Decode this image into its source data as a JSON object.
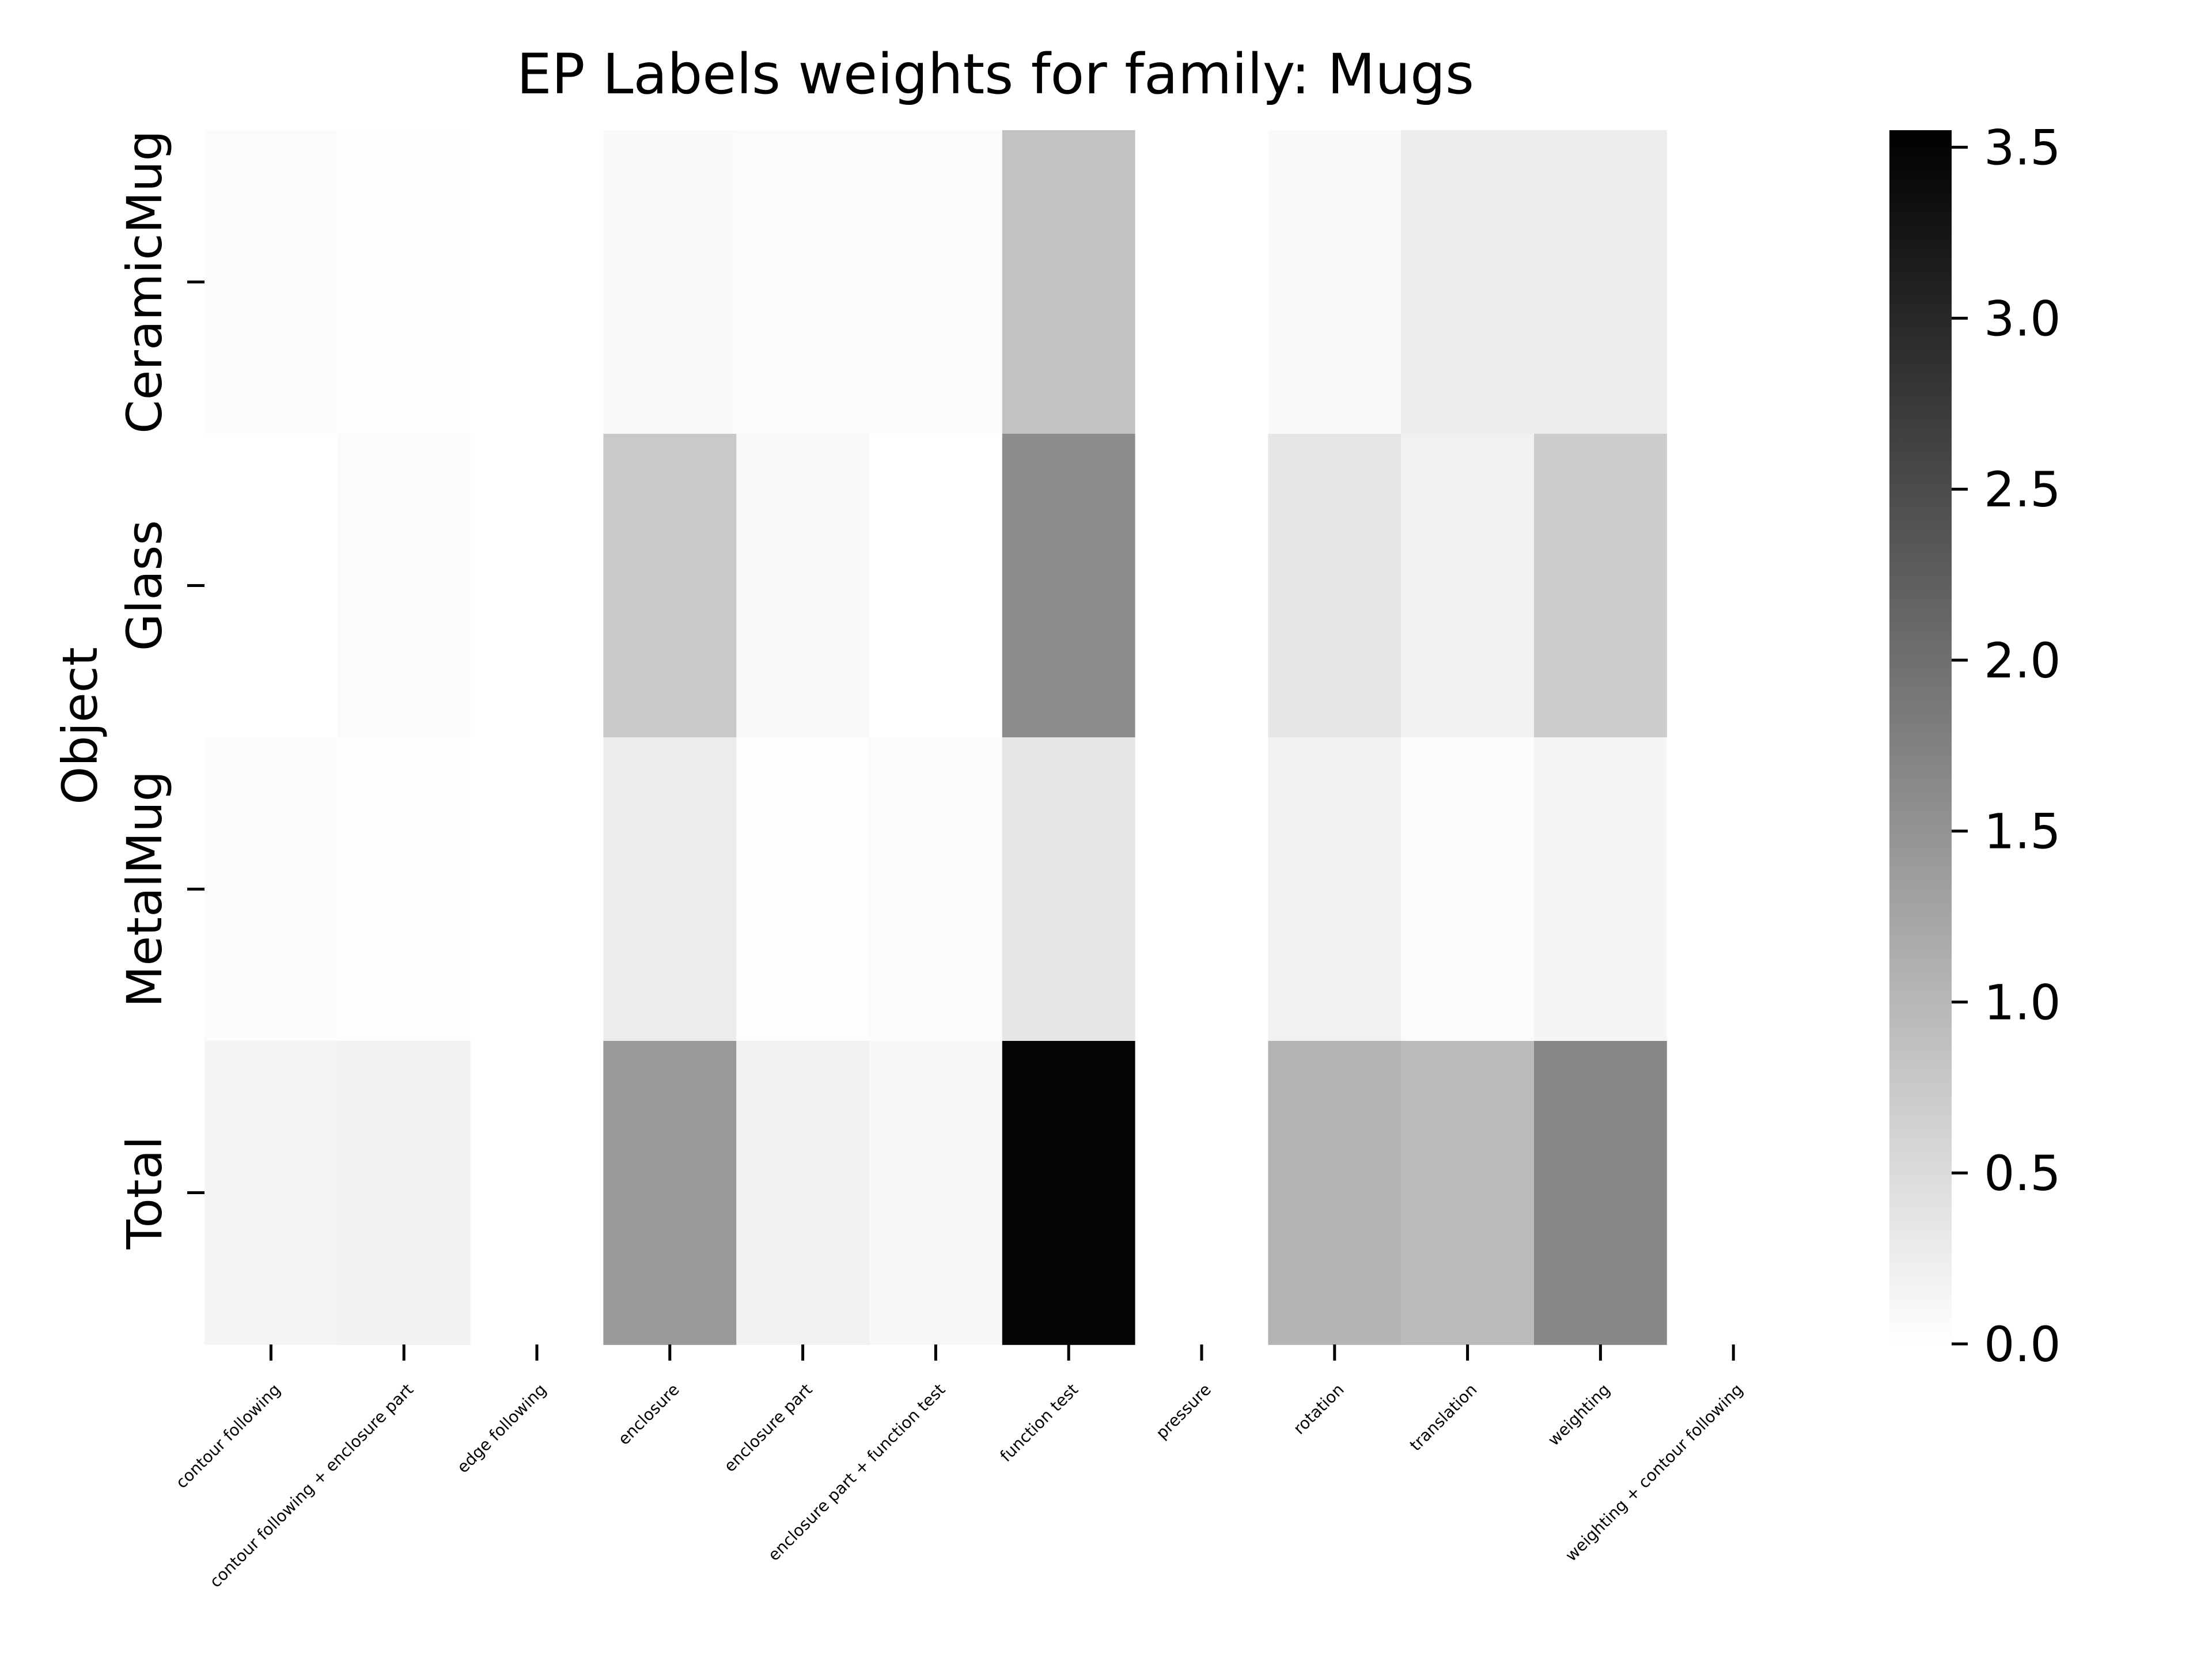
{
  "chart_data": {
    "type": "heatmap",
    "title": "EP Labels weights for family: Mugs",
    "xlabel": "",
    "ylabel": "Object",
    "x_categories": [
      "contour following",
      "contour following + enclosure part",
      "edge following",
      "enclosure",
      "enclosure part",
      "enclosure part + function test",
      "function test",
      "pressure",
      "rotation",
      "translation",
      "weighting",
      "weighting + contour following"
    ],
    "y_categories": [
      "CeramicMug",
      "Glass",
      "MetalMug",
      "Total"
    ],
    "values": [
      [
        0.06,
        0.03,
        null,
        0.07,
        0.06,
        0.06,
        0.85,
        null,
        0.07,
        0.26,
        0.27,
        null
      ],
      [
        0.0,
        0.05,
        null,
        0.75,
        0.1,
        0.0,
        1.6,
        null,
        0.35,
        0.2,
        0.7,
        null
      ],
      [
        0.06,
        0.03,
        null,
        0.26,
        0.03,
        0.05,
        0.35,
        null,
        0.2,
        0.06,
        0.14,
        null
      ],
      [
        0.16,
        0.18,
        null,
        1.4,
        0.19,
        0.11,
        3.5,
        null,
        1.05,
        0.95,
        1.65,
        null
      ]
    ],
    "missing_color": "#ffffff",
    "colormap": "Greys",
    "colorbar": {
      "min": 0.0,
      "max": 3.55,
      "ticks": [
        0.0,
        0.5,
        1.0,
        1.5,
        2.0,
        2.5,
        3.0,
        3.5
      ],
      "tick_labels": [
        "0.0",
        "0.5",
        "1.0",
        "1.5",
        "2.0",
        "2.5",
        "3.0",
        "3.5"
      ]
    },
    "grid": false,
    "legend": "colorbar-right"
  }
}
